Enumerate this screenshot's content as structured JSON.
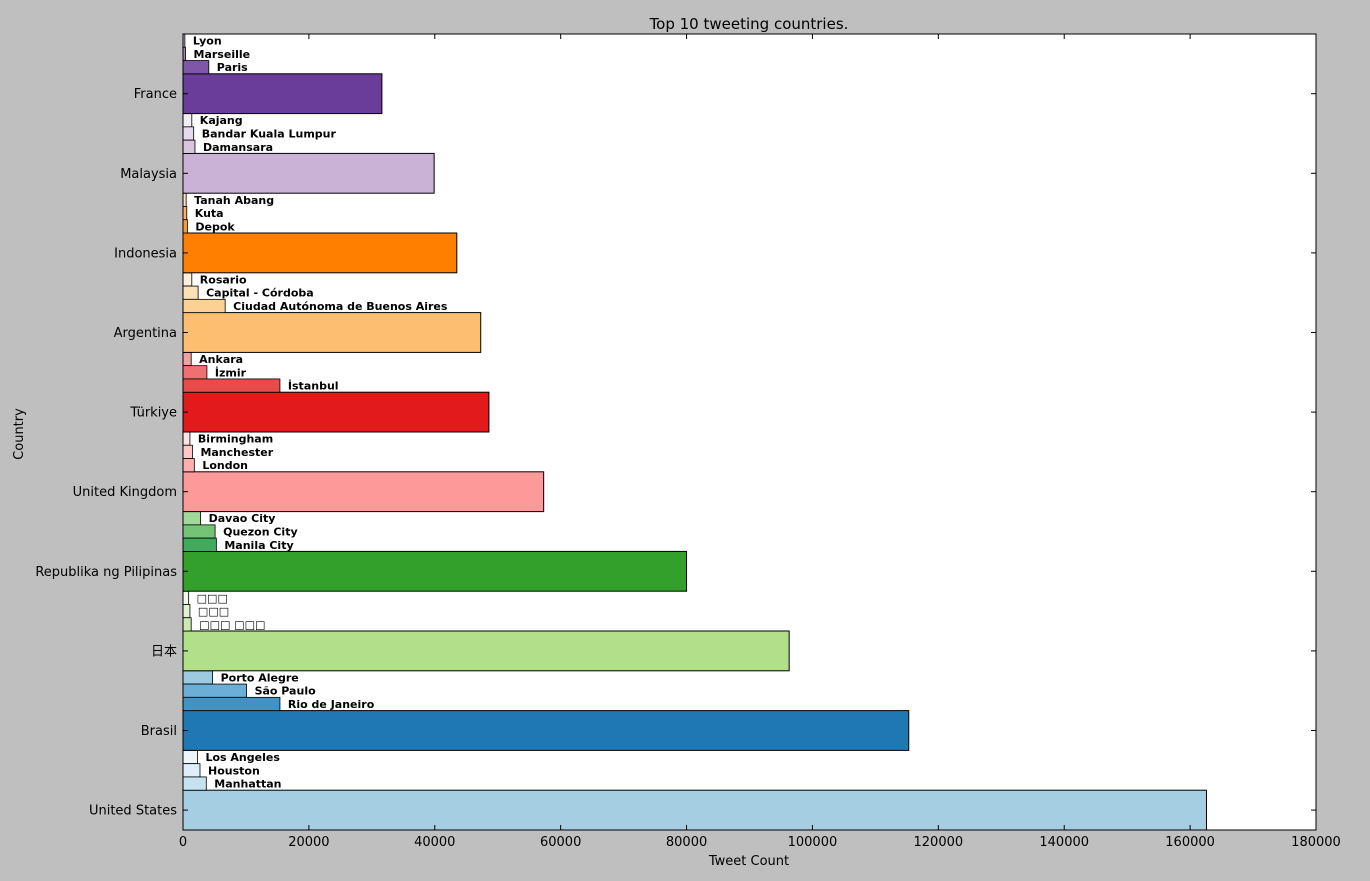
{
  "chart_data": {
    "type": "bar",
    "orientation": "horizontal",
    "title": "Top 10 tweeting countries.",
    "xlabel": "Tweet Count",
    "ylabel": "Country",
    "xlim": [
      0,
      180000
    ],
    "xticks": [
      0,
      20000,
      40000,
      60000,
      80000,
      100000,
      120000,
      140000,
      160000,
      180000
    ],
    "grid": false,
    "legend": "none",
    "countries": [
      {
        "name": "United States",
        "value": 162600,
        "color": "#a6cee3",
        "cities": [
          {
            "name": "Los Angeles",
            "value": 2300,
            "color": "#eef6fb"
          },
          {
            "name": "Houston",
            "value": 2700,
            "color": "#dceef7"
          },
          {
            "name": "Manhattan",
            "value": 3700,
            "color": "#c6e1ef"
          }
        ]
      },
      {
        "name": "Brasil",
        "value": 115300,
        "color": "#1f78b4",
        "cities": [
          {
            "name": "Porto Alegre",
            "value": 4700,
            "color": "#9ecae1"
          },
          {
            "name": "São Paulo",
            "value": 10100,
            "color": "#6baed6"
          },
          {
            "name": "Rio de Janeiro",
            "value": 15400,
            "color": "#4292c6"
          }
        ]
      },
      {
        "name": "日本",
        "value": 96300,
        "color": "#b2df8a",
        "cities": [
          {
            "name": "□□□",
            "value": 900,
            "color": "#f1f9e9"
          },
          {
            "name": "□□□",
            "value": 1100,
            "color": "#e2f3d3"
          },
          {
            "name": "□□□ □□□",
            "value": 1300,
            "color": "#cdeab2"
          }
        ]
      },
      {
        "name": "Republika ng Pilipinas",
        "value": 80000,
        "color": "#33a02c",
        "cities": [
          {
            "name": "Davao City",
            "value": 2800,
            "color": "#a1d99b"
          },
          {
            "name": "Quezon City",
            "value": 5100,
            "color": "#74c476"
          },
          {
            "name": "Manila City",
            "value": 5300,
            "color": "#41ab5d"
          }
        ]
      },
      {
        "name": "United Kingdom",
        "value": 57300,
        "color": "#fb9a99",
        "cities": [
          {
            "name": "Birmingham",
            "value": 1100,
            "color": "#fde3e3"
          },
          {
            "name": "Manchester",
            "value": 1500,
            "color": "#fcc9c8"
          },
          {
            "name": "London",
            "value": 1800,
            "color": "#fbb0af"
          }
        ]
      },
      {
        "name": "Türkiye",
        "value": 48600,
        "color": "#e31a1c",
        "cities": [
          {
            "name": "Ankara",
            "value": 1300,
            "color": "#f59f9f"
          },
          {
            "name": "İzmir",
            "value": 3800,
            "color": "#ef7070"
          },
          {
            "name": "İstanbul",
            "value": 15400,
            "color": "#e94b4b"
          }
        ]
      },
      {
        "name": "Argentina",
        "value": 47300,
        "color": "#fdbf6f",
        "cities": [
          {
            "name": "Rosario",
            "value": 1400,
            "color": "#fff0dc"
          },
          {
            "name": "Capital - Córdoba",
            "value": 2400,
            "color": "#fee0b6"
          },
          {
            "name": "Ciudad Autónoma de Buenos Aires",
            "value": 6700,
            "color": "#fdd093"
          }
        ]
      },
      {
        "name": "Indonesia",
        "value": 43500,
        "color": "#ff7f00",
        "cities": [
          {
            "name": "Tanah Abang",
            "value": 500,
            "color": "#ffe0bf"
          },
          {
            "name": "Kuta",
            "value": 600,
            "color": "#ffb066"
          },
          {
            "name": "Depok",
            "value": 700,
            "color": "#ff9933"
          }
        ]
      },
      {
        "name": "Malaysia",
        "value": 39900,
        "color": "#cab2d6",
        "cities": [
          {
            "name": "Kajang",
            "value": 1400,
            "color": "#f3eef6"
          },
          {
            "name": "Bandar Kuala Lumpur",
            "value": 1700,
            "color": "#e6dbec"
          },
          {
            "name": "Damansara",
            "value": 1900,
            "color": "#d8c6e1"
          }
        ]
      },
      {
        "name": "France",
        "value": 31600,
        "color": "#6a3d9a",
        "cities": [
          {
            "name": "Lyon",
            "value": 300,
            "color": "#c7b7d9"
          },
          {
            "name": "Marseille",
            "value": 400,
            "color": "#9f82c0"
          },
          {
            "name": "Paris",
            "value": 4100,
            "color": "#7e57a8"
          }
        ]
      }
    ]
  }
}
